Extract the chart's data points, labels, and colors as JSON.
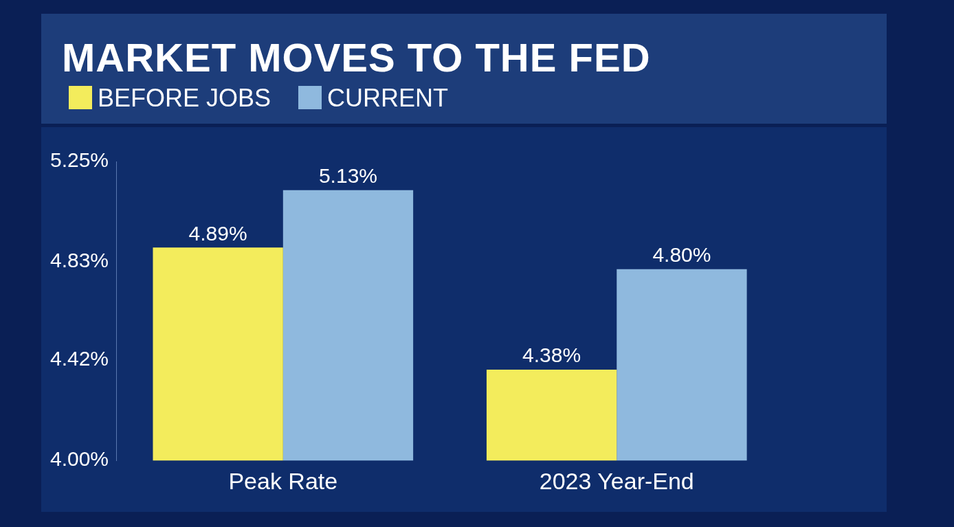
{
  "chart_data": {
    "type": "bar",
    "title": "MARKET MOVES TO THE FED",
    "categories": [
      "Peak Rate",
      "2023 Year-End"
    ],
    "series": [
      {
        "name": "BEFORE JOBS",
        "color": "#f3ec5c",
        "values": [
          4.89,
          4.38
        ],
        "value_labels": [
          "4.89%",
          "4.38%"
        ]
      },
      {
        "name": "CURRENT",
        "color": "#8fb9de",
        "values": [
          5.13,
          4.8
        ],
        "value_labels": [
          "5.13%",
          "4.80%"
        ]
      }
    ],
    "ylim": [
      4.0,
      5.25
    ],
    "yticks": [
      {
        "value": 4.0,
        "label": "4.00%"
      },
      {
        "value": 4.42,
        "label": "4.42%"
      },
      {
        "value": 4.83,
        "label": "4.83%"
      },
      {
        "value": 5.25,
        "label": "5.25%"
      }
    ],
    "grid": false,
    "legend": "top left"
  }
}
